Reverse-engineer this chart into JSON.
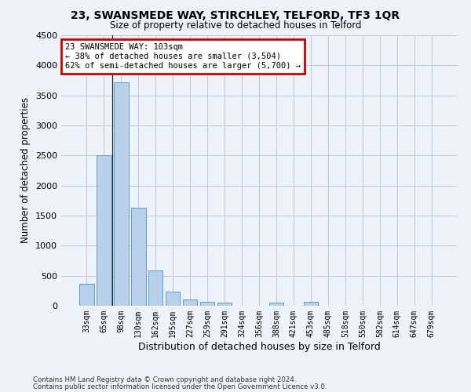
{
  "title_line1": "23, SWANSMEDE WAY, STIRCHLEY, TELFORD, TF3 1QR",
  "title_line2": "Size of property relative to detached houses in Telford",
  "xlabel": "Distribution of detached houses by size in Telford",
  "ylabel": "Number of detached properties",
  "categories": [
    "33sqm",
    "65sqm",
    "98sqm",
    "130sqm",
    "162sqm",
    "195sqm",
    "227sqm",
    "259sqm",
    "291sqm",
    "324sqm",
    "356sqm",
    "388sqm",
    "421sqm",
    "453sqm",
    "485sqm",
    "518sqm",
    "550sqm",
    "582sqm",
    "614sqm",
    "647sqm",
    "679sqm"
  ],
  "values": [
    370,
    2500,
    3720,
    1630,
    590,
    230,
    110,
    65,
    50,
    0,
    0,
    50,
    0,
    60,
    0,
    0,
    0,
    0,
    0,
    0,
    0
  ],
  "bar_color": "#b8d0ea",
  "bar_edge_color": "#5a9fd4",
  "annotation_text_line1": "23 SWANSMEDE WAY: 103sqm",
  "annotation_text_line2": "← 38% of detached houses are smaller (3,504)",
  "annotation_text_line3": "62% of semi-detached houses are larger (5,700) →",
  "annotation_box_color": "#cc0000",
  "vline_x_index": 1.5,
  "ylim": [
    0,
    4500
  ],
  "yticks": [
    0,
    500,
    1000,
    1500,
    2000,
    2500,
    3000,
    3500,
    4000,
    4500
  ],
  "footer_line1": "Contains HM Land Registry data © Crown copyright and database right 2024.",
  "footer_line2": "Contains public sector information licensed under the Open Government Licence v3.0.",
  "background_color": "#eef3fb",
  "plot_background_color": "#eef3fb",
  "grid_color": "#c0c8d8"
}
